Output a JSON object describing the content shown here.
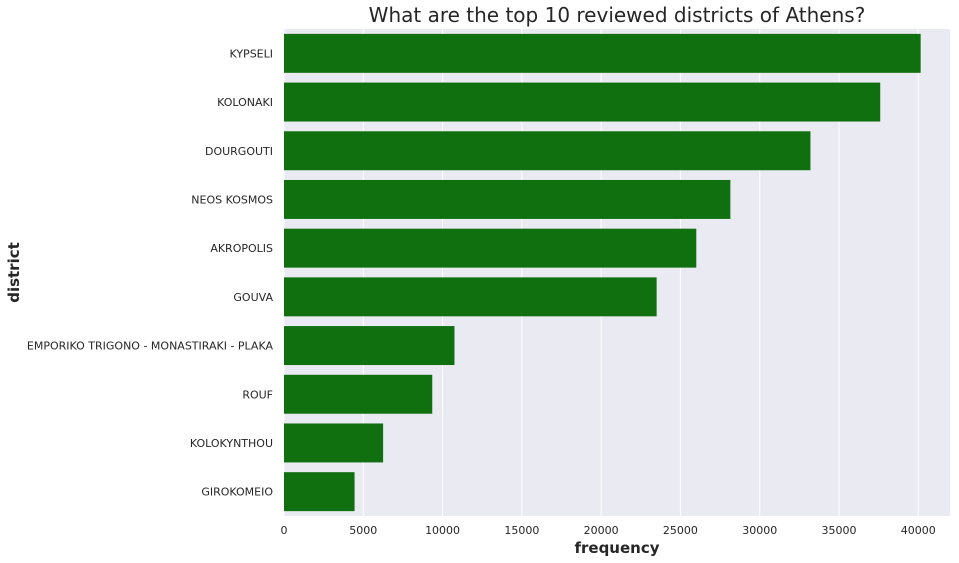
{
  "chart_data": {
    "type": "bar",
    "orientation": "horizontal",
    "title": "What are the top 10 reviewed districts of Athens?",
    "xlabel": "frequency",
    "ylabel": "district",
    "categories": [
      "KYPSELI",
      "KOLONAKI",
      "DOURGOUTI",
      "NEOS KOSMOS",
      "AKROPOLIS",
      "GOUVA",
      "EMPORIKO TRIGONO - MONASTIRAKI - PLAKA",
      "ROUF",
      "KOLOKYNTHOU",
      "GIROKOMEIO"
    ],
    "values": [
      40150,
      37600,
      33200,
      28150,
      26000,
      23500,
      10750,
      9350,
      6250,
      4450
    ],
    "xlim": [
      0,
      42000
    ],
    "xticks": [
      0,
      5000,
      10000,
      15000,
      20000,
      25000,
      30000,
      35000,
      40000
    ],
    "grid": true,
    "bar_color": "#107010",
    "plot_background": "#eaeaf2"
  }
}
